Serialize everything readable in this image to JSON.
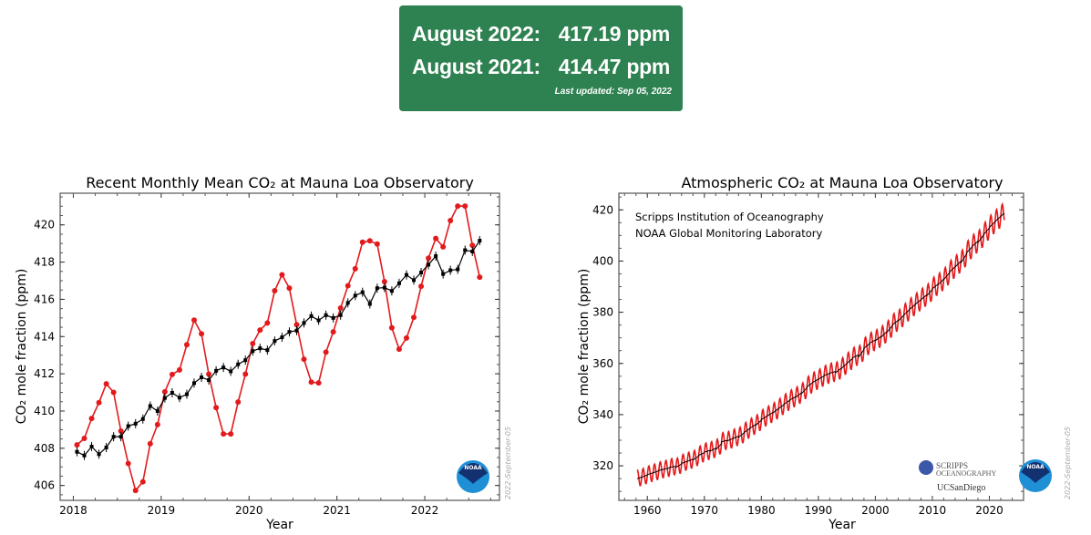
{
  "banner": {
    "row1_label": "August 2022:",
    "row1_value": "417.19 ppm",
    "row2_label": "August 2021:",
    "row2_value": "414.47 ppm",
    "updated": "Last updated: Sep 05, 2022",
    "color": "#2e8150"
  },
  "chart_data": [
    {
      "type": "line",
      "title": "Recent Monthly Mean CO₂ at Mauna Loa Observatory",
      "xlabel": "Year",
      "ylabel": "CO₂ mole fraction (ppm)",
      "xlim": [
        2017.85,
        2022.85
      ],
      "ylim": [
        405.2,
        421.7
      ],
      "xticks": [
        "2018",
        "2019",
        "2020",
        "2021",
        "2022"
      ],
      "yticks": [
        "406",
        "408",
        "410",
        "412",
        "414",
        "416",
        "418",
        "420"
      ],
      "grid": false,
      "date_stamp": "2022-September-05",
      "x_start": "2018-01",
      "series": [
        {
          "color": "#e31a1c",
          "marker": "circle",
          "values": [
            408.18,
            408.53,
            409.6,
            410.45,
            411.46,
            411.0,
            408.92,
            407.18,
            405.73,
            406.2,
            408.24,
            409.27,
            411.03,
            411.96,
            412.21,
            413.56,
            414.88,
            414.15,
            411.98,
            410.18,
            408.77,
            408.77,
            410.48,
            411.98,
            413.62,
            414.35,
            414.73,
            416.46,
            417.32,
            416.6,
            414.64,
            412.78,
            411.55,
            411.51,
            413.16,
            414.25,
            415.53,
            416.73,
            417.64,
            419.07,
            419.14,
            418.97,
            416.95,
            414.47,
            413.32,
            413.92,
            415.03,
            416.7,
            418.21,
            419.27,
            418.82,
            420.23,
            421.01,
            421.01,
            418.9,
            417.19
          ]
        },
        {
          "color": "#000000",
          "marker": "square",
          "values": [
            407.81,
            407.61,
            408.09,
            407.68,
            408.04,
            408.62,
            408.62,
            409.19,
            409.32,
            409.57,
            410.27,
            410.0,
            410.7,
            410.98,
            410.72,
            410.9,
            411.5,
            411.81,
            411.66,
            412.16,
            412.34,
            412.13,
            412.51,
            412.73,
            413.22,
            413.37,
            413.27,
            413.76,
            413.96,
            414.25,
            414.32,
            414.73,
            415.1,
            414.87,
            415.15,
            415.0,
            415.15,
            415.81,
            416.2,
            416.38,
            415.75,
            416.6,
            416.63,
            416.45,
            416.86,
            417.31,
            417.03,
            417.44,
            417.86,
            418.32,
            417.36,
            417.56,
            417.61,
            418.64,
            418.57,
            419.15
          ]
        }
      ]
    },
    {
      "type": "line",
      "title": "Atmospheric CO₂ at Mauna Loa Observatory",
      "xlabel": "Year",
      "ylabel": "CO₂ mole fraction (ppm)",
      "xlim": [
        1955,
        2026
      ],
      "ylim": [
        306.5,
        426.5
      ],
      "xticks": [
        "1960",
        "1970",
        "1980",
        "1990",
        "2000",
        "2010",
        "2020"
      ],
      "yticks": [
        "320",
        "340",
        "360",
        "380",
        "400",
        "420"
      ],
      "grid": false,
      "annotations": [
        "Scripps Institution of Oceanography",
        "NOAA Global Monitoring Laboratory"
      ],
      "date_stamp": "2022-September-05",
      "logos": [
        "SCRIPPS INSTITUTION OF OCEANOGRAPHY",
        "UC San Diego",
        "NOAA"
      ],
      "annual_years": [
        1958,
        1959,
        1960,
        1961,
        1962,
        1963,
        1964,
        1965,
        1966,
        1967,
        1968,
        1969,
        1970,
        1971,
        1972,
        1973,
        1974,
        1975,
        1976,
        1977,
        1978,
        1979,
        1980,
        1981,
        1982,
        1983,
        1984,
        1985,
        1986,
        1987,
        1988,
        1989,
        1990,
        1991,
        1992,
        1993,
        1994,
        1995,
        1996,
        1997,
        1998,
        1999,
        2000,
        2001,
        2002,
        2003,
        2004,
        2005,
        2006,
        2007,
        2008,
        2009,
        2010,
        2011,
        2012,
        2013,
        2014,
        2015,
        2016,
        2017,
        2018,
        2019,
        2020,
        2021,
        2022
      ],
      "trend_values": [
        315.2,
        315.98,
        316.91,
        317.64,
        318.45,
        318.99,
        319.62,
        320.04,
        321.37,
        322.18,
        323.05,
        324.62,
        325.68,
        326.32,
        327.46,
        329.68,
        330.19,
        331.12,
        332.03,
        333.84,
        335.41,
        336.84,
        338.76,
        340.12,
        341.48,
        343.15,
        344.87,
        346.35,
        347.61,
        349.31,
        351.69,
        353.2,
        354.45,
        355.7,
        356.54,
        357.21,
        358.96,
        360.97,
        362.74,
        363.88,
        366.84,
        368.54,
        369.71,
        371.32,
        373.45,
        375.98,
        377.7,
        379.98,
        382.09,
        384.02,
        385.83,
        387.64,
        390.1,
        391.85,
        394.06,
        396.74,
        398.81,
        401.01,
        404.41,
        406.76,
        408.72,
        411.66,
        414.24,
        416.45,
        418.5
      ],
      "seasonal_amplitude_ppm": 3.2,
      "series_colors": {
        "monthly": "#e31a1c",
        "trend": "#000000"
      }
    }
  ]
}
